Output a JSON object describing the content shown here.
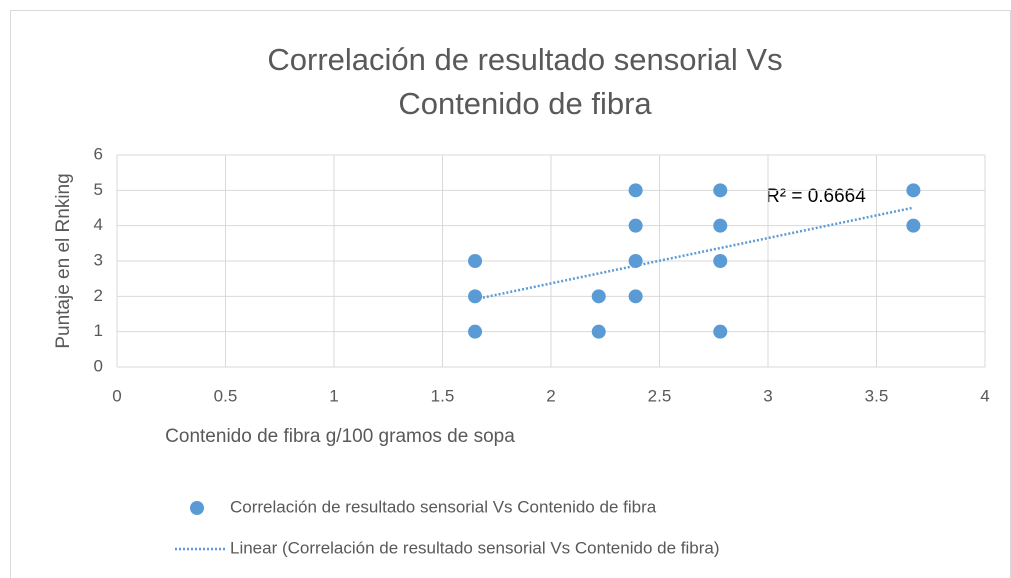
{
  "chart_data": {
    "type": "scatter",
    "title": "Correlación de resultado sensorial Vs Contenido de fibra",
    "x_label": "Contenido de fibra g/100 gramos de sopa",
    "y_label": "Puntaje en el Rnking",
    "annotation": "R² = 0.6664",
    "series": [
      {
        "name": "Correlación de resultado sensorial Vs Contenido de fibra",
        "color": "#5b9bd5",
        "x": [
          1.65,
          1.65,
          1.65,
          2.22,
          2.22,
          2.39,
          2.39,
          2.39,
          2.39,
          2.78,
          2.78,
          2.78,
          2.78,
          3.67,
          3.67
        ],
        "values": [
          1,
          2,
          3,
          1,
          2,
          2,
          3,
          4,
          5,
          1,
          3,
          4,
          5,
          4,
          5
        ]
      }
    ],
    "trendline": {
      "name": "Linear (Correlación de resultado sensorial Vs Contenido de fibra)",
      "color": "#5b9bd5"
    },
    "xlim": [
      0,
      4
    ],
    "xticks": [
      0,
      0.5,
      1,
      1.5,
      2,
      2.5,
      3,
      3.5,
      4
    ],
    "ylim": [
      0,
      6
    ],
    "yticks": [
      0,
      1,
      2,
      3,
      4,
      5,
      6
    ],
    "grid": true
  }
}
